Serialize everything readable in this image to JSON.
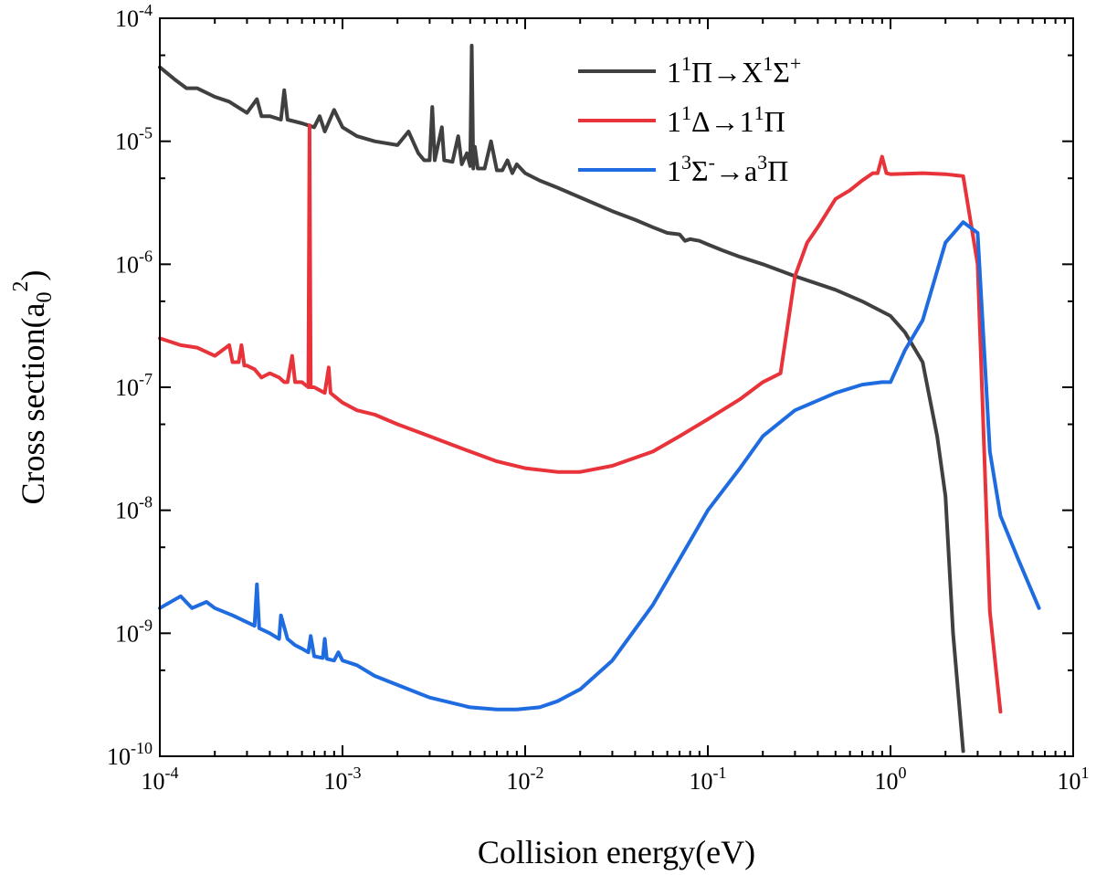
{
  "chart_data": {
    "type": "line",
    "title": "",
    "xlabel": "Collision energy(eV)",
    "ylabel_main": "Cross section(a",
    "ylabel_sub": "0",
    "ylabel_sup": "2",
    "ylabel_close": ")",
    "x_scale": "log",
    "y_scale": "log",
    "xlim": [
      0.0001,
      10
    ],
    "ylim": [
      1e-10,
      0.0001
    ],
    "grid": false,
    "legend_position": "top-right",
    "x_ticks": [
      {
        "base": "10",
        "exp": "-4",
        "value": 0.0001
      },
      {
        "base": "10",
        "exp": "-3",
        "value": 0.001
      },
      {
        "base": "10",
        "exp": "-2",
        "value": 0.01
      },
      {
        "base": "10",
        "exp": "-1",
        "value": 0.1
      },
      {
        "base": "10",
        "exp": "0",
        "value": 1
      },
      {
        "base": "10",
        "exp": "1",
        "value": 10
      }
    ],
    "y_ticks": [
      {
        "base": "10",
        "exp": "-10",
        "value": 1e-10
      },
      {
        "base": "10",
        "exp": "-9",
        "value": 1e-09
      },
      {
        "base": "10",
        "exp": "-8",
        "value": 1e-08
      },
      {
        "base": "10",
        "exp": "-7",
        "value": 1e-07
      },
      {
        "base": "10",
        "exp": "-6",
        "value": 1e-06
      },
      {
        "base": "10",
        "exp": "-5",
        "value": 1e-05
      },
      {
        "base": "10",
        "exp": "-4",
        "value": 0.0001
      }
    ],
    "series": [
      {
        "name": "1¹Π→X¹Σ⁺",
        "legend_parts": [
          [
            "1",
            ""
          ],
          [
            "1",
            "sup"
          ],
          [
            "Π→X",
            ""
          ],
          [
            "1",
            "sup"
          ],
          [
            "Σ",
            ""
          ],
          [
            "+",
            "sup"
          ]
        ],
        "color": "#404040",
        "x": [
          0.0001,
          0.00012,
          0.00014,
          0.00016,
          0.0002,
          0.00024,
          0.0003,
          0.00034,
          0.00036,
          0.0004,
          0.00046,
          0.00048,
          0.0005,
          0.0006,
          0.0007,
          0.00075,
          0.0008,
          0.0009,
          0.001,
          0.0012,
          0.0015,
          0.002,
          0.0023,
          0.0026,
          0.0028,
          0.003,
          0.0031,
          0.0032,
          0.0035,
          0.0036,
          0.004,
          0.0043,
          0.0045,
          0.0048,
          0.005,
          0.0051,
          0.0052,
          0.0053,
          0.0055,
          0.006,
          0.0065,
          0.007,
          0.0075,
          0.008,
          0.0085,
          0.009,
          0.01,
          0.012,
          0.015,
          0.02,
          0.03,
          0.04,
          0.05,
          0.06,
          0.07,
          0.075,
          0.08,
          0.09,
          0.1,
          0.12,
          0.15,
          0.2,
          0.3,
          0.5,
          0.7,
          1.0,
          1.2,
          1.5,
          1.8,
          2.0,
          2.2,
          2.5
        ],
        "y": [
          4e-05,
          3.2e-05,
          2.7e-05,
          2.7e-05,
          2.3e-05,
          2.1e-05,
          1.7e-05,
          2.2e-05,
          1.6e-05,
          1.6e-05,
          1.5e-05,
          2.6e-05,
          1.5e-05,
          1.4e-05,
          1.3e-05,
          1.6e-05,
          1.2e-05,
          1.8e-05,
          1.3e-05,
          1.1e-05,
          1e-05,
          9.3e-06,
          1.2e-05,
          8e-06,
          7e-06,
          7e-06,
          1.9e-05,
          7e-06,
          1.3e-05,
          7e-06,
          6.8e-06,
          1.1e-05,
          6.5e-06,
          8e-06,
          6.3e-06,
          6e-05,
          6e-06,
          9e-06,
          6e-06,
          6e-06,
          1e-05,
          5.8e-06,
          5.8e-06,
          7e-06,
          5.5e-06,
          6.5e-06,
          5.5e-06,
          4.8e-06,
          4.2e-06,
          3.5e-06,
          2.7e-06,
          2.3e-06,
          2e-06,
          1.8e-06,
          1.75e-06,
          1.55e-06,
          1.6e-06,
          1.55e-06,
          1.45e-06,
          1.3e-06,
          1.15e-06,
          1e-06,
          8e-07,
          6.2e-07,
          5e-07,
          3.8e-07,
          2.8e-07,
          1.6e-07,
          4e-08,
          1.3e-08,
          1e-09,
          1.1e-10
        ]
      },
      {
        "name": "1¹Δ→1¹Π",
        "legend_parts": [
          [
            "1",
            ""
          ],
          [
            "1",
            "sup"
          ],
          [
            "Δ→1",
            ""
          ],
          [
            "1",
            "sup"
          ],
          [
            "Π",
            ""
          ]
        ],
        "color": "#e8333a",
        "x": [
          0.0001,
          0.00013,
          0.00016,
          0.0002,
          0.00024,
          0.00025,
          0.00027,
          0.00028,
          0.00029,
          0.0003,
          0.00033,
          0.00036,
          0.00038,
          0.0004,
          0.00045,
          0.00048,
          0.0005,
          0.00053,
          0.00055,
          0.0006,
          0.00065,
          0.00066,
          0.00067,
          0.0007,
          0.0008,
          0.00084,
          0.00086,
          0.0009,
          0.001,
          0.0012,
          0.0015,
          0.002,
          0.003,
          0.004,
          0.005,
          0.007,
          0.01,
          0.015,
          0.02,
          0.03,
          0.05,
          0.07,
          0.1,
          0.15,
          0.2,
          0.25,
          0.3,
          0.35,
          0.4,
          0.5,
          0.6,
          0.7,
          0.8,
          0.85,
          0.9,
          0.95,
          1.0,
          1.5,
          2.0,
          2.5,
          3.0,
          3.5,
          4.0
        ],
        "y": [
          2.5e-07,
          2.2e-07,
          2.1e-07,
          1.8e-07,
          2.2e-07,
          1.6e-07,
          1.6e-07,
          2.2e-07,
          1.5e-07,
          1.5e-07,
          1.4e-07,
          1.2e-07,
          1.25e-07,
          1.3e-07,
          1.2e-07,
          1.1e-07,
          1.1e-07,
          1.8e-07,
          1.1e-07,
          1.1e-07,
          1e-07,
          1.35e-05,
          1e-07,
          1e-07,
          9e-08,
          1.45e-07,
          9e-08,
          8.5e-08,
          7.5e-08,
          6.5e-08,
          6e-08,
          5e-08,
          4e-08,
          3.4e-08,
          3e-08,
          2.5e-08,
          2.2e-08,
          2.05e-08,
          2.05e-08,
          2.3e-08,
          3e-08,
          4e-08,
          5.5e-08,
          8e-08,
          1.1e-07,
          1.3e-07,
          8e-07,
          1.5e-06,
          2e-06,
          3.4e-06,
          4e-06,
          4.8e-06,
          5.5e-06,
          5.5e-06,
          7.5e-06,
          5.5e-06,
          5.4e-06,
          5.5e-06,
          5.4e-06,
          5.2e-06,
          1e-06,
          1.5e-09,
          2.3e-10
        ]
      },
      {
        "name": "1³Σ⁻→a³Π",
        "legend_parts": [
          [
            "1",
            ""
          ],
          [
            "3",
            "sup"
          ],
          [
            "Σ",
            ""
          ],
          [
            "-",
            "sup"
          ],
          [
            "→a",
            ""
          ],
          [
            "3",
            "sup"
          ],
          [
            "Π",
            ""
          ]
        ],
        "color": "#1f6be0",
        "x": [
          0.0001,
          0.00013,
          0.00015,
          0.00018,
          0.0002,
          0.00025,
          0.00033,
          0.00034,
          0.00035,
          0.0004,
          0.00045,
          0.00046,
          0.0005,
          0.00055,
          0.0006,
          0.00065,
          0.00067,
          0.0007,
          0.00078,
          0.0008,
          0.00082,
          0.0009,
          0.00095,
          0.001,
          0.0012,
          0.0015,
          0.002,
          0.003,
          0.005,
          0.007,
          0.009,
          0.012,
          0.015,
          0.02,
          0.03,
          0.05,
          0.07,
          0.1,
          0.15,
          0.2,
          0.3,
          0.5,
          0.7,
          0.9,
          1.0,
          1.2,
          1.5,
          2.0,
          2.5,
          3.0,
          3.5,
          4.0,
          5.0,
          6.5
        ],
        "y": [
          1.6e-09,
          2e-09,
          1.6e-09,
          1.8e-09,
          1.6e-09,
          1.4e-09,
          1.15e-09,
          2.5e-09,
          1.1e-09,
          1e-09,
          9e-10,
          1.4e-09,
          9e-10,
          8e-10,
          7.5e-10,
          7e-10,
          9.5e-10,
          6.5e-10,
          6.3e-10,
          9e-10,
          6.2e-10,
          6e-10,
          7e-10,
          6e-10,
          5.5e-10,
          4.5e-10,
          3.8e-10,
          3e-10,
          2.5e-10,
          2.4e-10,
          2.4e-10,
          2.5e-10,
          2.8e-10,
          3.5e-10,
          6e-10,
          1.7e-09,
          4e-09,
          1e-08,
          2.2e-08,
          4e-08,
          6.5e-08,
          9e-08,
          1.05e-07,
          1.1e-07,
          1.1e-07,
          2e-07,
          3.5e-07,
          1.5e-06,
          2.2e-06,
          1.8e-06,
          3e-08,
          9e-09,
          4e-09,
          1.6e-09
        ]
      }
    ]
  }
}
